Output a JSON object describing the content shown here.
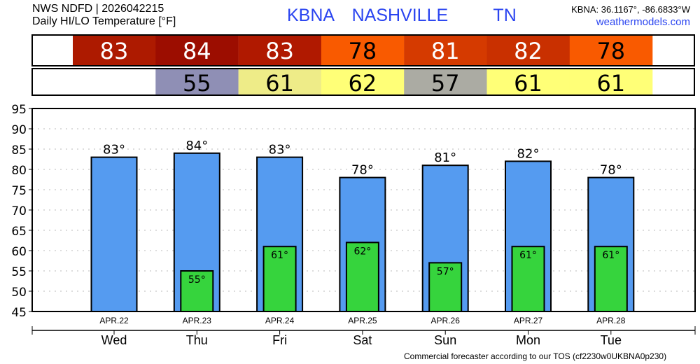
{
  "header": {
    "source": "NWS NDFD | 2026042215",
    "title": "Daily HI/LO Temperature [°F]",
    "station": "KBNA  NASHVILLE     TN",
    "coords": "KBNA: 36.1167°, -86.6833°W",
    "site": "weathermodels.com"
  },
  "footer": "Commercial forecaster according to our TOS (cf2230w0UKBNA0p230)",
  "strips": {
    "hi_colors": [
      "#ad1a00",
      "#9c0d00",
      "#b01900",
      "#f95a00",
      "#d53a00",
      "#c93000",
      "#f95a00"
    ],
    "hi_text_colors": [
      "#ffffff",
      "#ffffff",
      "#ffffff",
      "#000000",
      "#ffffff",
      "#ffffff",
      "#000000"
    ],
    "lo_colors": [
      "#ffffff",
      "#8f8fb5",
      "#eeec88",
      "#ffff77",
      "#ababa3",
      "#ffff77",
      "#ffff77"
    ]
  },
  "chart_data": {
    "type": "bar",
    "categories": [
      "APR.22",
      "APR.23",
      "APR.24",
      "APR.25",
      "APR.26",
      "APR.27",
      "APR.28"
    ],
    "days": [
      "Wed",
      "Thu",
      "Fri",
      "Sat",
      "Sun",
      "Mon",
      "Tue"
    ],
    "series": [
      {
        "name": "High",
        "values": [
          83,
          84,
          83,
          78,
          81,
          82,
          78
        ],
        "color": "#559bf0"
      },
      {
        "name": "Low",
        "values": [
          null,
          55,
          61,
          62,
          57,
          61,
          61
        ],
        "color": "#36d43d"
      }
    ],
    "yticks": [
      45,
      50,
      55,
      60,
      65,
      70,
      75,
      80,
      85,
      90,
      95
    ],
    "ylim": [
      45,
      95
    ],
    "grid": true,
    "unit": "°"
  }
}
